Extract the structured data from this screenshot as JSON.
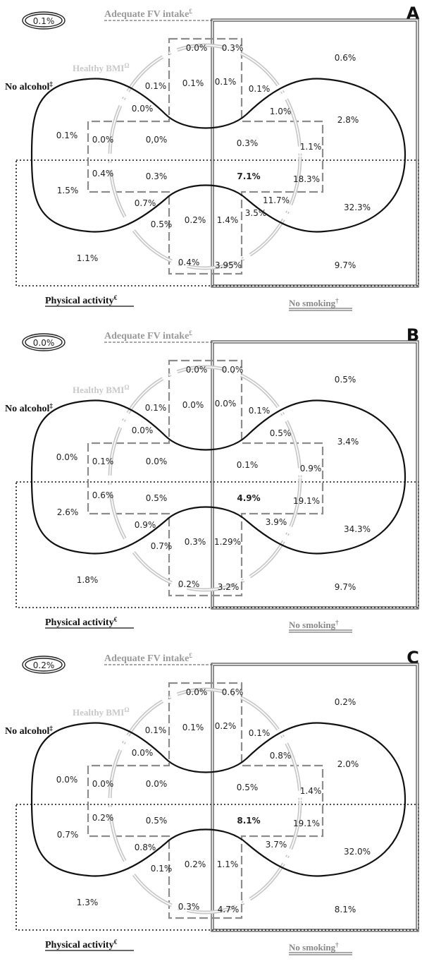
{
  "legend": {
    "fv_label": "Adequate FV intake",
    "fv_symbol": "£",
    "bmi_label": "Healthy BMI",
    "bmi_symbol": "Ω",
    "alcohol_label": "No alcohol",
    "alcohol_symbol": "‡",
    "pa_label": "Physical activity",
    "pa_symbol": "€",
    "smoking_label": "No smoking",
    "smoking_symbol": "†"
  },
  "colors": {
    "alcohol": "#111111",
    "fv": "#8c8c8c",
    "bmi": "#c8c8c8",
    "smoking": "#555555",
    "pa": "#111111"
  },
  "panels": [
    {
      "letter": "A",
      "none_value": "0.1%",
      "values": {
        "top_left_inner": "0.0%",
        "top_mid_right": "0.3%",
        "outer_top_right": "0.6%",
        "bmi_only_left": "0.1%",
        "fv_bmi_alc": "0.1%",
        "fv_bmi_alc_smk": "0.1%",
        "bmi_alc_smk": "0.1%",
        "bmi_alc_notch": "0.0%",
        "alc_smk_notch": "1.0%",
        "alc_smk_right": "2.8%",
        "alc_only": "0.1%",
        "alc_bmi_left": "0.0%",
        "alc_bmi_fv": "0,0%",
        "alc_smk_fv": "0.3%",
        "alc_smk_bmi": "1.1%",
        "alc_pa": "1.5%",
        "alc_pa_bmi": "0.4%",
        "alc_pa_bmi_fv": "0.3%",
        "all_five": "7.1%",
        "alc_pa_smk_bmi": "18.3%",
        "pa_bmi_notch": "0.7%",
        "pa_smk_bmi_notch": "11.7%",
        "alc_pa_smk": "32.3%",
        "pa_bmi_low": "0.5%",
        "pa_bmi_fv": "0.2%",
        "pa_fv_smk_bmi": "1.4%",
        "pa_smk_bmi_low": "3.5%",
        "pa_only": "1.1%",
        "pa_fv": "0.4%",
        "pa_fv_smk": "3.95%",
        "pa_smk": "9.7%"
      }
    },
    {
      "letter": "B",
      "none_value": "0.0%",
      "values": {
        "top_left_inner": "0.0%",
        "top_mid_right": "0.0%",
        "outer_top_right": "0.5%",
        "bmi_only_left": "0.1%",
        "fv_bmi_alc": "0.0%",
        "fv_bmi_alc_smk": "0.0%",
        "bmi_alc_smk": "0.1%",
        "bmi_alc_notch": "0.0%",
        "alc_smk_notch": "0.5%",
        "alc_smk_right": "3.4%",
        "alc_only": "0.0%",
        "alc_bmi_left": "0.1%",
        "alc_bmi_fv": "0.0%",
        "alc_smk_fv": "0.1%",
        "alc_smk_bmi": "0.9%",
        "alc_pa": "2.6%",
        "alc_pa_bmi": "0.6%",
        "alc_pa_bmi_fv": "0.5%",
        "all_five": "4.9%",
        "alc_pa_smk_bmi": "19.1%",
        "pa_bmi_notch": "0.9%",
        "pa_smk_bmi_notch": "3.9%",
        "alc_pa_smk": "34.3%",
        "pa_bmi_low": "0.7%",
        "pa_bmi_fv": "0.3%",
        "pa_fv_smk_bmi": "1.29%",
        "pa_smk_bmi_low": "",
        "pa_only": "1.8%",
        "pa_fv": "0.2%",
        "pa_fv_smk": "3.2%",
        "pa_smk": "9.7%"
      }
    },
    {
      "letter": "C",
      "none_value": "0.2%",
      "values": {
        "top_left_inner": "0.0%",
        "top_mid_right": "0.6%",
        "outer_top_right": "0.2%",
        "bmi_only_left": "0.1%",
        "fv_bmi_alc": "0.1%",
        "fv_bmi_alc_smk": "0.2%",
        "bmi_alc_smk": "0.1%",
        "bmi_alc_notch": "0.0%",
        "alc_smk_notch": "0.8%",
        "alc_smk_right": "2.0%",
        "alc_only": "0.0%",
        "alc_bmi_left": "0.0%",
        "alc_bmi_fv": "0.0%",
        "alc_smk_fv": "0.5%",
        "alc_smk_bmi": "1.4%",
        "alc_pa": "0.7%",
        "alc_pa_bmi": "0.2%",
        "alc_pa_bmi_fv": "0.5%",
        "all_five": "8.1%",
        "alc_pa_smk_bmi": "19.1%",
        "pa_bmi_notch": "0.8%",
        "pa_smk_bmi_notch": "3.7%",
        "alc_pa_smk": "32.0%",
        "pa_bmi_low": "0.1%",
        "pa_bmi_fv": "0.2%",
        "pa_fv_smk_bmi": "1.1%",
        "pa_smk_bmi_low": "",
        "pa_only": "1.3%",
        "pa_fv": "0.3%",
        "pa_fv_smk": "4.7%",
        "pa_smk": "8.1%"
      }
    }
  ]
}
